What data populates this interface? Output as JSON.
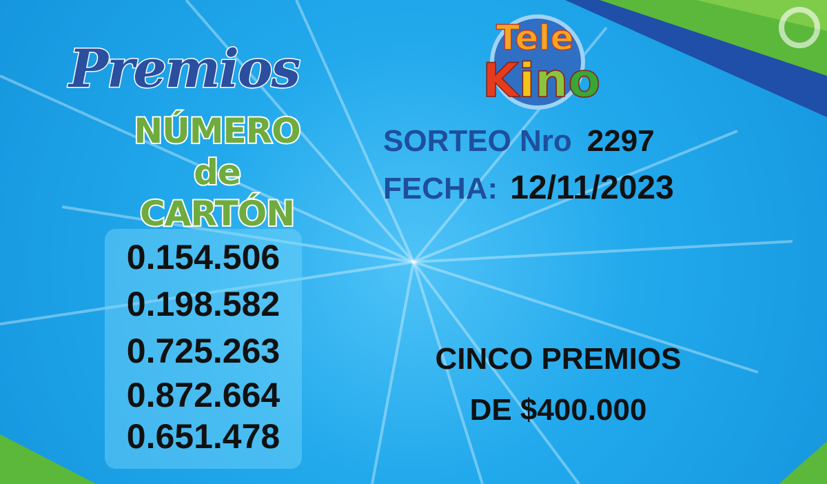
{
  "header": {
    "title_script": "Premios",
    "subtitle_line1": "NÚMERO",
    "subtitle_line2": "de CARTÓN"
  },
  "logo": {
    "text_line1": "Tele",
    "text_line2": "Kino"
  },
  "draw": {
    "sorteo_label": "SORTEO Nro",
    "sorteo_value": "2297",
    "fecha_label": "FECHA:",
    "fecha_value": "12/11/2023"
  },
  "winning_numbers": [
    "0.154.506",
    "0.198.582",
    "0.725.263",
    "0.872.664",
    "0.651.478"
  ],
  "prize": {
    "line1": "CINCO PREMIOS",
    "line2": "DE $400.000"
  },
  "colors": {
    "background": "#22a9ec",
    "title_blue": "#2b4f9e",
    "subtitle_green": "#6fab3e",
    "label_blue": "#1e4f9c",
    "accent_green": "#5cb83a"
  }
}
